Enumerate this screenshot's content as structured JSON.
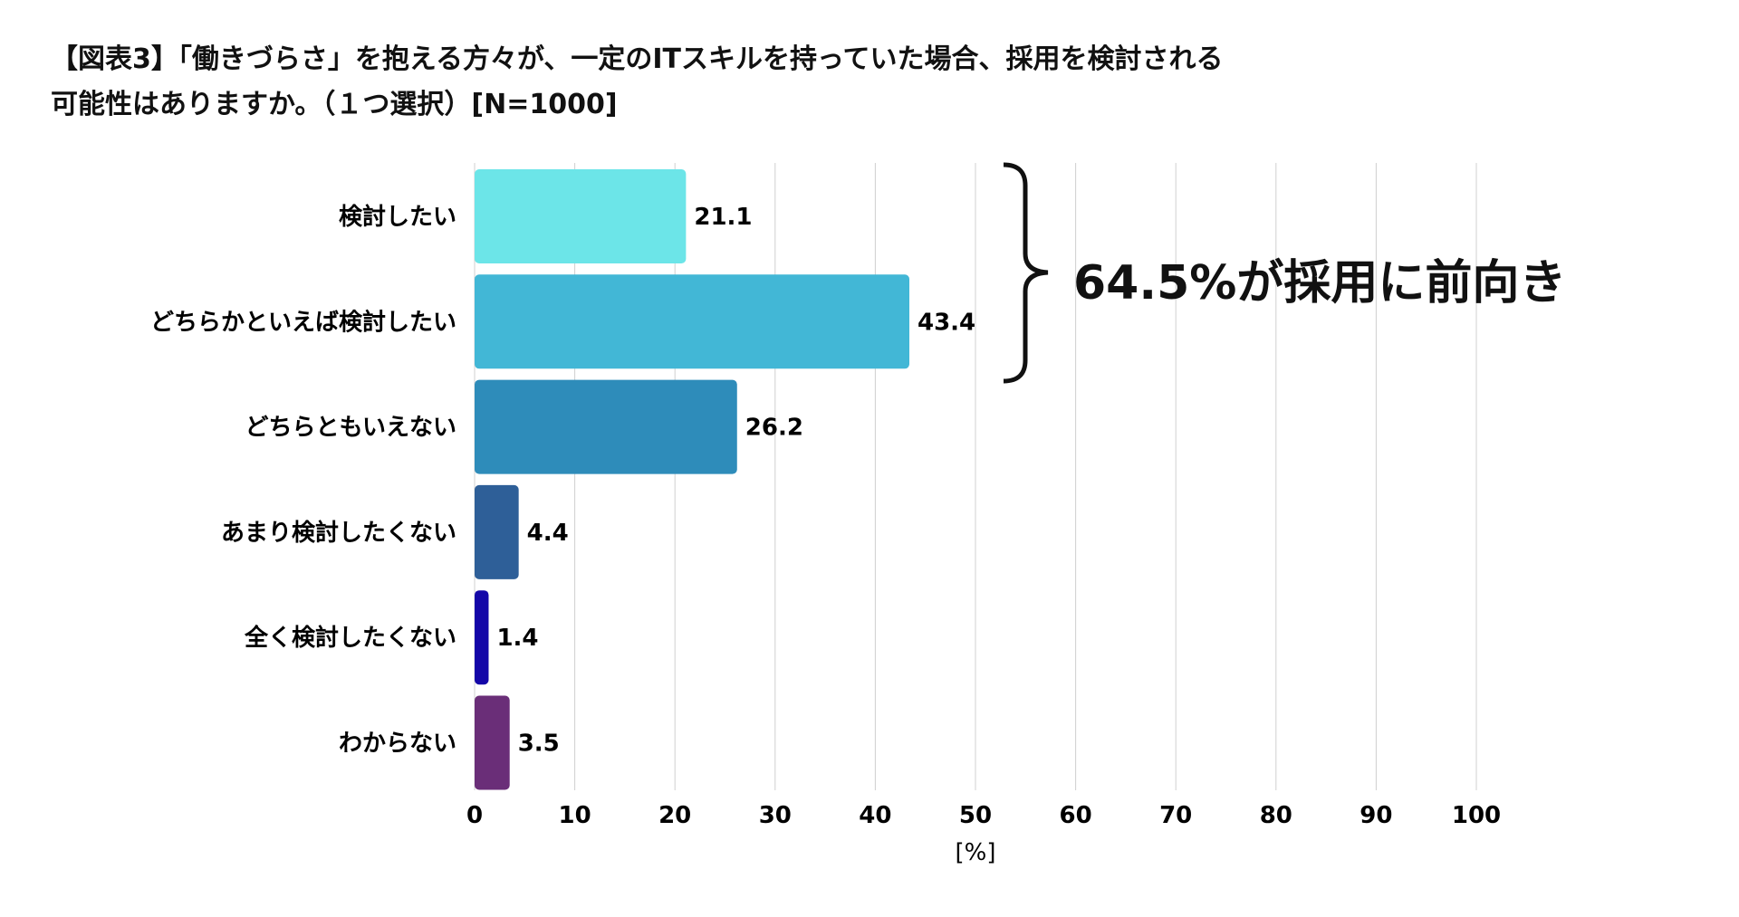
{
  "chart_data": {
    "type": "bar",
    "orientation": "horizontal",
    "title_lines": [
      "【図表3】「働きづらさ」を抱える方々が、一定のITスキルを持っていた場合、採用を検討される",
      "可能性はありますか。（１つ選択）[N=1000]"
    ],
    "categories": [
      "検討したい",
      "どちらかといえば検討したい",
      "どちらともいえない",
      "あまり検討したくない",
      "全く検討したくない",
      "わからない"
    ],
    "values": [
      21.1,
      43.4,
      26.2,
      4.4,
      1.4,
      3.5
    ],
    "data_labels": [
      "21.1",
      "43.4",
      "26.2",
      "4.4",
      "1.4",
      "3.5"
    ],
    "colors": [
      "#6ce5e8",
      "#42b7d6",
      "#2e8cba",
      "#2e5f98",
      "#1407a8",
      "#6a2e78"
    ],
    "xlim": [
      0,
      100
    ],
    "xticks": [
      "0",
      "10",
      "20",
      "30",
      "40",
      "50",
      "60",
      "70",
      "80",
      "90",
      "100"
    ],
    "xlabel": "[%]",
    "ylabel": "",
    "grid": "vertical",
    "annotation": "64.5%が採用に前向き"
  }
}
